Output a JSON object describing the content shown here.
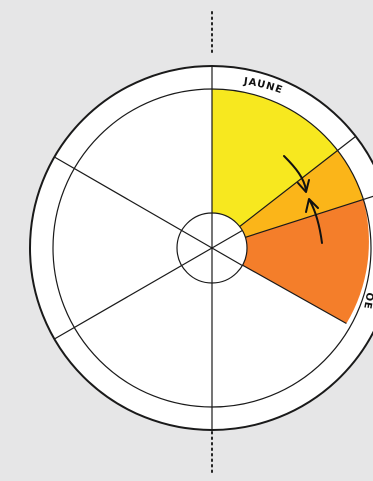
{
  "wheel": {
    "labels": {
      "jaune": "JAUNE",
      "right_edge_partial": "OE"
    },
    "segments": [
      {
        "name": "yellow",
        "color": "#f7e81f"
      },
      {
        "name": "yellow-orange",
        "color": "#fbb519"
      },
      {
        "name": "orange",
        "color": "#f47e2a"
      }
    ],
    "colors": {
      "background": "#e6e6e7",
      "stroke": "#1a1a1a",
      "white": "#ffffff"
    },
    "arrows": {
      "count": 2,
      "description_visible": false
    }
  }
}
